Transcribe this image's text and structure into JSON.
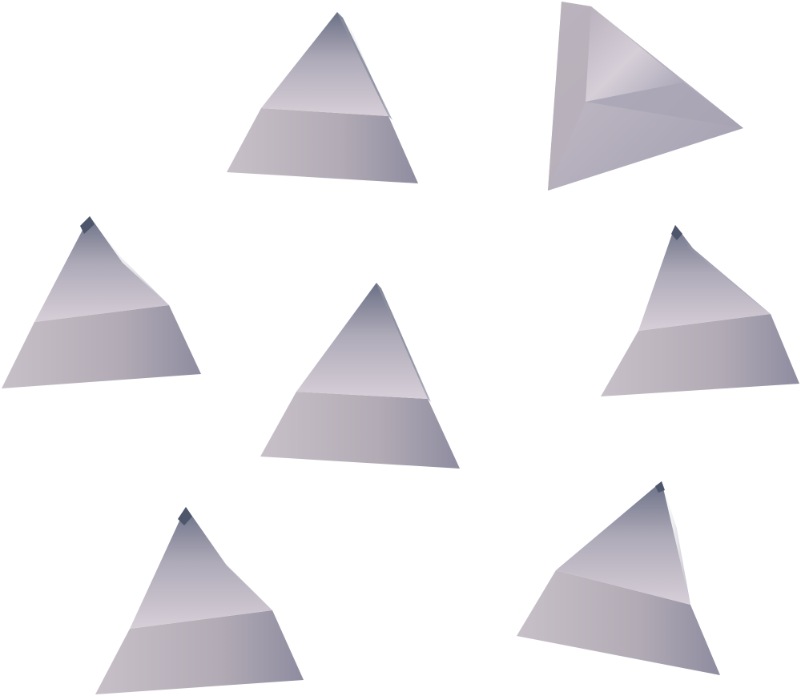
{
  "scene": {
    "background": "#ffffff",
    "item_count": 7,
    "items": [
      {
        "kind": "tetrahedron-fragment"
      },
      {
        "kind": "tetrahedron-fragment"
      },
      {
        "kind": "tetrahedron-fragment"
      },
      {
        "kind": "tetrahedron-fragment"
      },
      {
        "kind": "tetrahedron-fragment"
      },
      {
        "kind": "tetrahedron-fragment"
      },
      {
        "kind": "tetrahedron-fragment"
      }
    ]
  },
  "colors": {
    "light_face_top": "#d8d1da",
    "light_face_bottom": "#b9b1ba",
    "dark_edge": "#5d6478",
    "mid_shade": "#8f8fa2",
    "lower_face_left": "#c3bbc3",
    "lower_face_right": "#9b99ab"
  }
}
